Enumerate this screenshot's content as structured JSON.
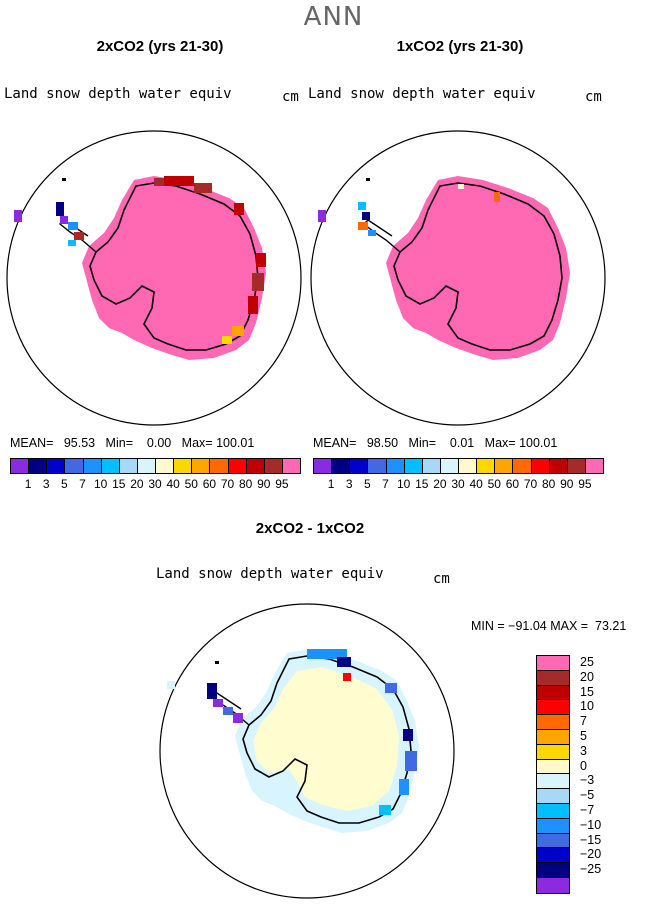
{
  "title": "ANN",
  "panels": [
    {
      "title": "2xCO2 (yrs 21-30)",
      "variable": "Land snow depth water equiv",
      "units": "cm",
      "mean_label": "MEAN=",
      "mean": "95.53",
      "min_label": "Min=",
      "min": "0.00",
      "max_label": "Max=",
      "max": "100.01"
    },
    {
      "title": "1xCO2 (yrs 21-30)",
      "variable": "Land snow depth water equiv",
      "units": "cm",
      "mean_label": "MEAN=",
      "mean": "98.50",
      "min_label": "Min=",
      "min": "0.01",
      "max_label": "Max=",
      "max": "100.01"
    }
  ],
  "diff_panel": {
    "title": "2xCO2 - 1xCO2",
    "variable": "Land snow depth water equiv",
    "units": "cm",
    "minmax_text": "MIN = −91.04 MAX =  73.21"
  },
  "colorbar_abs": {
    "ticks": [
      "1",
      "3",
      "5",
      "7",
      "10",
      "15",
      "20",
      "30",
      "40",
      "50",
      "60",
      "70",
      "80",
      "90",
      "95"
    ],
    "colors": [
      "#8a2be2",
      "#000080",
      "#0000cd",
      "#4169e1",
      "#1e90ff",
      "#00bfff",
      "#a8d8f8",
      "#d8f4ff",
      "#fffacd",
      "#ffd700",
      "#ffa500",
      "#ff6a00",
      "#ff0000",
      "#c00000",
      "#a52a2a",
      "#ff69b4"
    ]
  },
  "colorbar_diff": {
    "ticks": [
      "25",
      "20",
      "15",
      "10",
      "7",
      "5",
      "3",
      "0",
      "−3",
      "−5",
      "−7",
      "−10",
      "−15",
      "−20",
      "−25"
    ],
    "colors": [
      "#ff69b4",
      "#a52a2a",
      "#c00000",
      "#ff0000",
      "#ff6a00",
      "#ffa500",
      "#ffd700",
      "#fffacd",
      "#d8f4ff",
      "#a8d8f8",
      "#00bfff",
      "#1e90ff",
      "#4169e1",
      "#0000cd",
      "#000080",
      "#8a2be2"
    ]
  },
  "colors": {
    "snow_full": "#ff69b4",
    "diff_fill": "#fffdd0",
    "diff_light": "#d8f4ff"
  }
}
